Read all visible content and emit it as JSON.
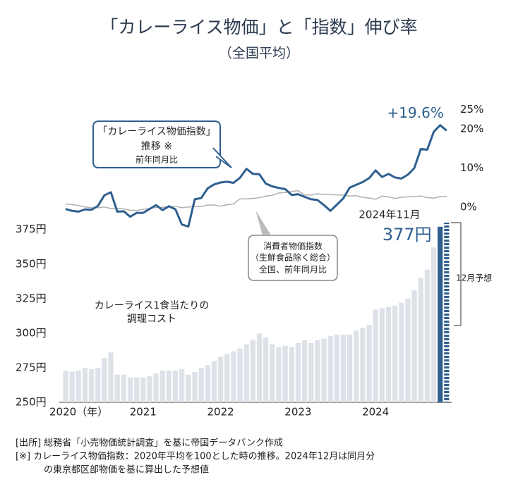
{
  "title": "「カレーライス物価」と「指数」伸び率",
  "subtitle": "（全国平均）",
  "footer": [
    "[出所]  総務省「小売物価統計調査」を基に帝国データバンク作成",
    "[※]  カレーライス物価指数：2020年平均を100とした時の推移。2024年12月は同月分",
    "の東京都区部物価を基に算出した予想値"
  ],
  "chart_data": [
    {
      "type": "line",
      "annotations": [
        "「カレーライス物価指数」",
        "推移 ※",
        "前年同月比",
        "消費者物価指数",
        "（生鮮食品除く総合）",
        "全国、前年同月比"
      ],
      "ylim": [
        -6,
        26
      ],
      "yticks": [
        {
          "value": 0,
          "label": "0%"
        },
        {
          "value": 10,
          "label": "10%"
        },
        {
          "value": 20,
          "label": "20%"
        },
        {
          "value": 25,
          "label": "25%"
        }
      ],
      "series": [
        {
          "color": "#2e5f8f",
          "values": [
            -0.5,
            -1,
            -1.2,
            -0.6,
            -0.7,
            0.3,
            3,
            3.8,
            -1.2,
            -1.1,
            -2.5,
            -1.5,
            -1.5,
            -0.5,
            0.5,
            -0.8,
            0.2,
            -0.6,
            -4.5,
            -5,
            2,
            2.3,
            4.8,
            5.8,
            6.3,
            6.5,
            6.2,
            7.5,
            9.8,
            8.5,
            8.4,
            6,
            5.3,
            4.9,
            4.6,
            3.1,
            3.3,
            2.6,
            2,
            1.8,
            0.5,
            -1,
            0.6,
            2.2,
            5,
            5.7,
            6.4,
            7.4,
            9.4,
            7.7,
            8.5,
            7.6,
            7.3,
            8.3,
            10,
            14.9,
            14.7,
            19.3,
            21,
            19.6,
            null
          ],
          "value_labels": [
            null,
            null,
            null,
            null,
            null,
            null,
            null,
            null,
            null,
            null,
            null,
            null,
            null,
            null,
            null,
            null,
            null,
            null,
            null,
            null,
            null,
            null,
            null,
            null,
            null,
            null,
            null,
            null,
            null,
            null,
            null,
            null,
            null,
            null,
            null,
            null,
            null,
            null,
            null,
            null,
            null,
            null,
            null,
            null,
            null,
            null,
            null,
            null,
            null,
            null,
            null,
            null,
            null,
            null,
            null,
            null,
            null,
            null,
            null,
            "+19.6%",
            null
          ]
        },
        {
          "color": "#b0b0b0",
          "values": [
            0.8,
            0.6,
            0.4,
            0,
            -0.2,
            -0.2,
            0,
            -0.4,
            -0.3,
            -0.5,
            -0.8,
            -0.9,
            -0.6,
            -0.4,
            -0.1,
            -0.1,
            0.1,
            0.2,
            -0.2,
            0,
            0.1,
            0.1,
            0.5,
            0.5,
            0.2,
            0.6,
            0.8,
            2.1,
            2.1,
            2.2,
            2.4,
            2.8,
            3,
            3.6,
            3.7,
            4,
            4.2,
            3.1,
            3.1,
            3.4,
            3.2,
            3.3,
            3.1,
            3.1,
            2.8,
            2.9,
            2.5,
            2.3,
            2,
            2.8,
            2.6,
            2.2,
            2.5,
            2.6,
            2.7,
            2.8,
            2.4,
            2.3,
            2.7,
            2.7,
            null
          ]
        }
      ]
    },
    {
      "type": "bar",
      "annotations": [
        "カレーライス1食当たりの",
        "調理コスト",
        "2024年11月",
        "12月予想"
      ],
      "categories": [
        "2020（年）",
        null,
        null,
        null,
        null,
        null,
        null,
        null,
        null,
        null,
        null,
        null,
        "2021",
        null,
        null,
        null,
        null,
        null,
        null,
        null,
        null,
        null,
        null,
        null,
        "2022",
        null,
        null,
        null,
        null,
        null,
        null,
        null,
        null,
        null,
        null,
        null,
        "2023",
        null,
        null,
        null,
        null,
        null,
        null,
        null,
        null,
        null,
        null,
        null,
        "2024",
        null,
        null,
        null,
        null,
        null,
        null,
        null,
        null,
        null,
        null,
        null
      ],
      "ylim": [
        250,
        382
      ],
      "yticks": [
        {
          "value": 250,
          "label": "250円"
        },
        {
          "value": 275,
          "label": "275円"
        },
        {
          "value": 300,
          "label": "300円"
        },
        {
          "value": 325,
          "label": "325円"
        },
        {
          "value": 350,
          "label": "350円"
        },
        {
          "value": 375,
          "label": "375円"
        }
      ],
      "series": [
        {
          "color": "#dde2e8",
          "hatch": false,
          "values": [
            273,
            272,
            273,
            275,
            274,
            275,
            282,
            286,
            270,
            270,
            268,
            268,
            268,
            269,
            271,
            273,
            273,
            273,
            274,
            270,
            272,
            275,
            277,
            280,
            283,
            285,
            287,
            289,
            292,
            295,
            300,
            297,
            292,
            290,
            291,
            290,
            293,
            295,
            293,
            295,
            296,
            298,
            299,
            299,
            299,
            302,
            304,
            306,
            317,
            318,
            319,
            320,
            322,
            325,
            331,
            340,
            346,
            362,
            null,
            null
          ]
        },
        {
          "color": "#2e5f8f",
          "hatch": false,
          "values": [
            null,
            null,
            null,
            null,
            null,
            null,
            null,
            null,
            null,
            null,
            null,
            null,
            null,
            null,
            null,
            null,
            null,
            null,
            null,
            null,
            null,
            null,
            null,
            null,
            null,
            null,
            null,
            null,
            null,
            null,
            null,
            null,
            null,
            null,
            null,
            null,
            null,
            null,
            null,
            null,
            null,
            null,
            null,
            null,
            null,
            null,
            null,
            null,
            null,
            null,
            null,
            null,
            null,
            null,
            null,
            null,
            null,
            null,
            377,
            null
          ],
          "value_labels": [
            null,
            null,
            null,
            null,
            null,
            null,
            null,
            null,
            null,
            null,
            null,
            null,
            null,
            null,
            null,
            null,
            null,
            null,
            null,
            null,
            null,
            null,
            null,
            null,
            null,
            null,
            null,
            null,
            null,
            null,
            null,
            null,
            null,
            null,
            null,
            null,
            null,
            null,
            null,
            null,
            null,
            null,
            null,
            null,
            null,
            null,
            null,
            null,
            null,
            null,
            null,
            null,
            null,
            null,
            null,
            null,
            null,
            null,
            "377円",
            null
          ]
        },
        {
          "color": "#2e5f8f",
          "hatch": true,
          "values": [
            null,
            null,
            null,
            null,
            null,
            null,
            null,
            null,
            null,
            null,
            null,
            null,
            null,
            null,
            null,
            null,
            null,
            null,
            null,
            null,
            null,
            null,
            null,
            null,
            null,
            null,
            null,
            null,
            null,
            null,
            null,
            null,
            null,
            null,
            null,
            null,
            null,
            null,
            null,
            null,
            null,
            null,
            null,
            null,
            null,
            null,
            null,
            null,
            null,
            null,
            null,
            null,
            null,
            null,
            null,
            null,
            null,
            null,
            null,
            380
          ]
        }
      ]
    }
  ]
}
